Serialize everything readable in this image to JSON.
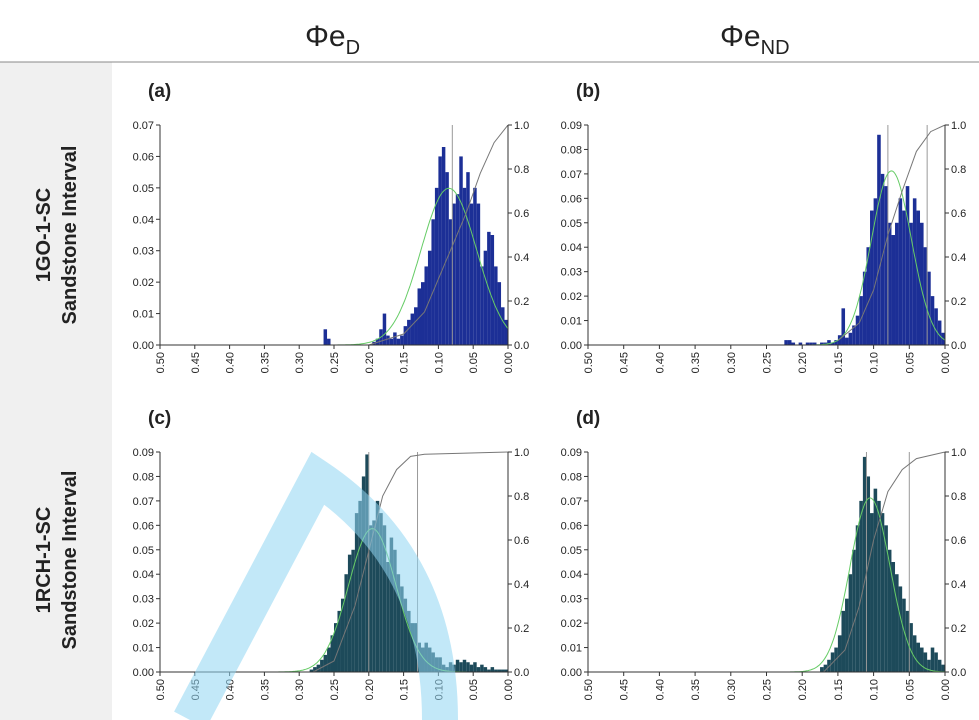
{
  "header": {
    "columns": [
      {
        "base": "Φe",
        "sub": "D"
      },
      {
        "base": "Φe",
        "sub": "ND"
      }
    ]
  },
  "rows": [
    {
      "line1": "1GO-1-SC",
      "line2": "Sandstone Interval"
    },
    {
      "line1": "1RCH-1-SC",
      "line2": "Sandstone Interval"
    }
  ],
  "chart_data": [
    {
      "type": "histogram",
      "title": "(a)",
      "color": "#1c2f96",
      "bins": [
        0,
        0.005,
        0.01,
        0.015,
        0.02,
        0.025,
        0.03,
        0.035,
        0.04,
        0.045,
        0.05,
        0.055,
        0.06,
        0.065,
        0.07,
        0.075,
        0.08,
        0.085,
        0.09,
        0.095,
        0.1,
        0.105,
        0.11,
        0.115,
        0.12,
        0.125,
        0.13,
        0.135,
        0.14,
        0.145,
        0.15,
        0.155,
        0.16,
        0.165,
        0.17,
        0.175,
        0.18,
        0.185,
        0.19,
        0.195,
        0.2,
        0.205,
        0.21,
        0.215,
        0.22,
        0.225,
        0.23,
        0.235,
        0.24,
        0.245,
        0.25,
        0.255,
        0.26,
        0.265,
        0.27,
        0.275,
        0.28,
        0.285,
        0.29,
        0.295,
        0.3
      ],
      "values": [
        0.008,
        0.012,
        0.02,
        0.025,
        0.035,
        0.036,
        0.03,
        0.025,
        0.045,
        0.05,
        0.045,
        0.055,
        0.05,
        0.06,
        0.048,
        0.045,
        0.04,
        0.055,
        0.063,
        0.06,
        0.05,
        0.04,
        0.03,
        0.025,
        0.02,
        0.018,
        0.012,
        0.01,
        0.008,
        0.006,
        0.003,
        0.002,
        0.004,
        0.002,
        0.003,
        0.01,
        0.005,
        0.002,
        0.001,
        0,
        0,
        0,
        0,
        0,
        0,
        0,
        0,
        0,
        0,
        0,
        0,
        0.002,
        0.005,
        0,
        0,
        0,
        0,
        0,
        0,
        0
      ],
      "xlim": [
        0.5,
        0
      ],
      "xticks": [
        {
          "value": 0.5,
          "label": "0.50"
        },
        0.45,
        {
          "value": 0.4,
          "label": "0.40"
        },
        0.35,
        {
          "value": 0.3,
          "label": "0.30"
        },
        0.25,
        {
          "value": 0.2,
          "label": "0.20"
        },
        0.15,
        {
          "value": 0.1,
          "label": "0.10"
        },
        0.05,
        {
          "value": 0,
          "label": "0.00"
        }
      ],
      "ylim": [
        0,
        0.07
      ],
      "yticks": [
        {
          "value": 0,
          "label": "0.00"
        },
        0.01,
        0.02,
        0.03,
        0.04,
        0.05,
        0.06,
        0.07
      ],
      "y2lim": [
        0,
        1
      ],
      "y2ticks": [
        {
          "value": 0,
          "label": "0.0"
        },
        0.2,
        0.4,
        0.6,
        0.8,
        {
          "value": 1,
          "label": "1.0"
        }
      ],
      "normal": {
        "mean": 0.085,
        "sd": 0.04,
        "color": "#66cc66"
      },
      "cdf": {
        "x": [
          0.2,
          0.15,
          0.12,
          0.1,
          0.08,
          0.06,
          0.04,
          0.02,
          0
        ],
        "values": [
          0,
          0.05,
          0.15,
          0.3,
          0.45,
          0.6,
          0.78,
          0.92,
          1
        ],
        "color": "#777777",
        "axis": "y2"
      },
      "markers": {
        "x": [
          0.08
        ],
        "color": "#999999"
      }
    },
    {
      "type": "histogram",
      "title": "(b)",
      "color": "#1c2f96",
      "bins": [
        0,
        0.005,
        0.01,
        0.015,
        0.02,
        0.025,
        0.03,
        0.035,
        0.04,
        0.045,
        0.05,
        0.055,
        0.06,
        0.065,
        0.07,
        0.075,
        0.08,
        0.085,
        0.09,
        0.095,
        0.1,
        0.105,
        0.11,
        0.115,
        0.12,
        0.125,
        0.13,
        0.135,
        0.14,
        0.145,
        0.15,
        0.155,
        0.16,
        0.165,
        0.17,
        0.175,
        0.18,
        0.185,
        0.19,
        0.195,
        0.2,
        0.205,
        0.21,
        0.215,
        0.22,
        0.225,
        0.23,
        0.235,
        0.24,
        0.245,
        0.25,
        0.255,
        0.26,
        0.265,
        0.27,
        0.275,
        0.28,
        0.285,
        0.29,
        0.295,
        0.3
      ],
      "values": [
        0.005,
        0.01,
        0.015,
        0.02,
        0.03,
        0.04,
        0.05,
        0.055,
        0.06,
        0.05,
        0.065,
        0.055,
        0.06,
        0.05,
        0.045,
        0.05,
        0.065,
        0.07,
        0.086,
        0.06,
        0.055,
        0.04,
        0.03,
        0.02,
        0.012,
        0.008,
        0.005,
        0.003,
        0.015,
        0.004,
        0.002,
        0.001,
        0.002,
        0.001,
        0.001,
        0,
        0.001,
        0.001,
        0.001,
        0,
        0.001,
        0,
        0.001,
        0.002,
        0.002,
        0,
        0,
        0,
        0,
        0,
        0,
        0,
        0,
        0,
        0,
        0,
        0,
        0,
        0,
        0
      ],
      "xlim": [
        0.5,
        0
      ],
      "xticks": [
        {
          "value": 0.5,
          "label": "0.50"
        },
        0.45,
        {
          "value": 0.4,
          "label": "0.40"
        },
        0.35,
        {
          "value": 0.3,
          "label": "0.30"
        },
        0.25,
        {
          "value": 0.2,
          "label": "0.20"
        },
        0.15,
        {
          "value": 0.1,
          "label": "0.10"
        },
        0.05,
        {
          "value": 0,
          "label": "0.00"
        }
      ],
      "ylim": [
        0,
        0.09
      ],
      "yticks": [
        {
          "value": 0,
          "label": "0.00"
        },
        0.01,
        0.02,
        0.03,
        0.04,
        0.05,
        0.06,
        0.07,
        0.08,
        0.09
      ],
      "y2lim": [
        0,
        1
      ],
      "y2ticks": [
        {
          "value": 0,
          "label": "0.0"
        },
        0.2,
        0.4,
        0.6,
        0.8,
        {
          "value": 1,
          "label": "1.0"
        }
      ],
      "normal": {
        "mean": 0.075,
        "sd": 0.028,
        "color": "#66cc66"
      },
      "cdf": {
        "x": [
          0.15,
          0.12,
          0.1,
          0.08,
          0.06,
          0.04,
          0.02,
          0
        ],
        "values": [
          0.02,
          0.1,
          0.25,
          0.5,
          0.7,
          0.88,
          0.97,
          1
        ],
        "color": "#777777",
        "axis": "y2"
      },
      "markers": {
        "x": [
          0.08,
          0.025
        ],
        "color": "#999999"
      }
    },
    {
      "type": "histogram",
      "title": "(c)",
      "color": "#1d4a5a",
      "bins": [
        0,
        0.005,
        0.01,
        0.015,
        0.02,
        0.025,
        0.03,
        0.035,
        0.04,
        0.045,
        0.05,
        0.055,
        0.06,
        0.065,
        0.07,
        0.075,
        0.08,
        0.085,
        0.09,
        0.095,
        0.1,
        0.105,
        0.11,
        0.115,
        0.12,
        0.125,
        0.13,
        0.135,
        0.14,
        0.145,
        0.15,
        0.155,
        0.16,
        0.165,
        0.17,
        0.175,
        0.18,
        0.185,
        0.19,
        0.195,
        0.2,
        0.205,
        0.21,
        0.215,
        0.22,
        0.225,
        0.23,
        0.235,
        0.24,
        0.245,
        0.25,
        0.255,
        0.26,
        0.265,
        0.27,
        0.275,
        0.28,
        0.285,
        0.29,
        0.295,
        0.3
      ],
      "values": [
        0.001,
        0.001,
        0.001,
        0.001,
        0.002,
        0.001,
        0.002,
        0.003,
        0.002,
        0.004,
        0.003,
        0.004,
        0.005,
        0.004,
        0.005,
        0.003,
        0.004,
        0.002,
        0.003,
        0.006,
        0.006,
        0.008,
        0.01,
        0.012,
        0.01,
        0.012,
        0.02,
        0.02,
        0.025,
        0.03,
        0.035,
        0.04,
        0.05,
        0.055,
        0.045,
        0.06,
        0.065,
        0.07,
        0.062,
        0.06,
        0.089,
        0.08,
        0.07,
        0.065,
        0.05,
        0.048,
        0.04,
        0.03,
        0.025,
        0.02,
        0.015,
        0.01,
        0.007,
        0.005,
        0.003,
        0.002,
        0.001,
        0,
        0,
        0
      ],
      "xlim": [
        0.5,
        0
      ],
      "xticks": [
        {
          "value": 0.5,
          "label": "0.50"
        },
        0.45,
        {
          "value": 0.4,
          "label": "0.40"
        },
        0.35,
        {
          "value": 0.3,
          "label": "0.30"
        },
        0.25,
        {
          "value": 0.2,
          "label": "0.20"
        },
        0.15,
        {
          "value": 0.1,
          "label": "0.10"
        },
        0.05,
        {
          "value": 0,
          "label": "0.00"
        }
      ],
      "ylim": [
        0,
        0.09
      ],
      "yticks": [
        {
          "value": 0,
          "label": "0.00"
        },
        0.01,
        0.02,
        0.03,
        0.04,
        0.05,
        0.06,
        0.07,
        0.08,
        0.09
      ],
      "y2lim": [
        0,
        1
      ],
      "y2ticks": [
        {
          "value": 0,
          "label": "0.0"
        },
        0.2,
        0.4,
        0.6,
        0.8,
        {
          "value": 1,
          "label": "1.0"
        }
      ],
      "normal": {
        "mean": 0.195,
        "sd": 0.034,
        "color": "#66cc66"
      },
      "cdf": {
        "x": [
          0.28,
          0.25,
          0.22,
          0.2,
          0.18,
          0.16,
          0.14,
          0.12,
          0
        ],
        "values": [
          0,
          0.05,
          0.3,
          0.55,
          0.8,
          0.92,
          0.98,
          0.99,
          1
        ],
        "color": "#777777",
        "axis": "y2"
      },
      "markers": {
        "x": [
          0.2,
          0.13
        ],
        "color": "#999999"
      }
    },
    {
      "type": "histogram",
      "title": "(d)",
      "color": "#1d4a5a",
      "bins": [
        0,
        0.005,
        0.01,
        0.015,
        0.02,
        0.025,
        0.03,
        0.035,
        0.04,
        0.045,
        0.05,
        0.055,
        0.06,
        0.065,
        0.07,
        0.075,
        0.08,
        0.085,
        0.09,
        0.095,
        0.1,
        0.105,
        0.11,
        0.115,
        0.12,
        0.125,
        0.13,
        0.135,
        0.14,
        0.145,
        0.15,
        0.155,
        0.16,
        0.165,
        0.17,
        0.175,
        0.18,
        0.185,
        0.19,
        0.195,
        0.2,
        0.205,
        0.21,
        0.215,
        0.22,
        0.225,
        0.23,
        0.235,
        0.24,
        0.245,
        0.25,
        0.255,
        0.26,
        0.265,
        0.27,
        0.275,
        0.28,
        0.285,
        0.29,
        0.295,
        0.3
      ],
      "values": [
        0.003,
        0.005,
        0.008,
        0.01,
        0.005,
        0.008,
        0.01,
        0.012,
        0.015,
        0.02,
        0.025,
        0.03,
        0.035,
        0.04,
        0.045,
        0.05,
        0.06,
        0.065,
        0.07,
        0.075,
        0.065,
        0.08,
        0.088,
        0.07,
        0.06,
        0.05,
        0.04,
        0.03,
        0.025,
        0.015,
        0.01,
        0.008,
        0.005,
        0.003,
        0.002,
        0,
        0,
        0,
        0,
        0,
        0,
        0,
        0,
        0,
        0,
        0,
        0,
        0,
        0,
        0,
        0,
        0,
        0,
        0,
        0,
        0,
        0,
        0,
        0,
        0
      ],
      "xlim": [
        0.5,
        0
      ],
      "xticks": [
        {
          "value": 0.5,
          "label": "0.50"
        },
        0.45,
        {
          "value": 0.4,
          "label": "0.40"
        },
        0.35,
        {
          "value": 0.3,
          "label": "0.30"
        },
        0.25,
        {
          "value": 0.2,
          "label": "0.20"
        },
        0.15,
        {
          "value": 0.1,
          "label": "0.10"
        },
        0.05,
        {
          "value": 0,
          "label": "0.00"
        }
      ],
      "ylim": [
        0,
        0.09
      ],
      "yticks": [
        {
          "value": 0,
          "label": "0.00"
        },
        0.01,
        0.02,
        0.03,
        0.04,
        0.05,
        0.06,
        0.07,
        0.08,
        0.09
      ],
      "y2lim": [
        0,
        1
      ],
      "y2ticks": [
        {
          "value": 0,
          "label": "0.0"
        },
        0.2,
        0.4,
        0.6,
        0.8,
        {
          "value": 1,
          "label": "1.0"
        }
      ],
      "normal": {
        "mean": 0.105,
        "sd": 0.028,
        "color": "#66cc66"
      },
      "cdf": {
        "x": [
          0.17,
          0.14,
          0.12,
          0.1,
          0.08,
          0.06,
          0.04,
          0
        ],
        "values": [
          0,
          0.1,
          0.3,
          0.6,
          0.82,
          0.92,
          0.97,
          1
        ],
        "color": "#777777",
        "axis": "y2"
      },
      "markers": {
        "x": [
          0.11,
          0.05
        ],
        "color": "#999999"
      }
    }
  ]
}
